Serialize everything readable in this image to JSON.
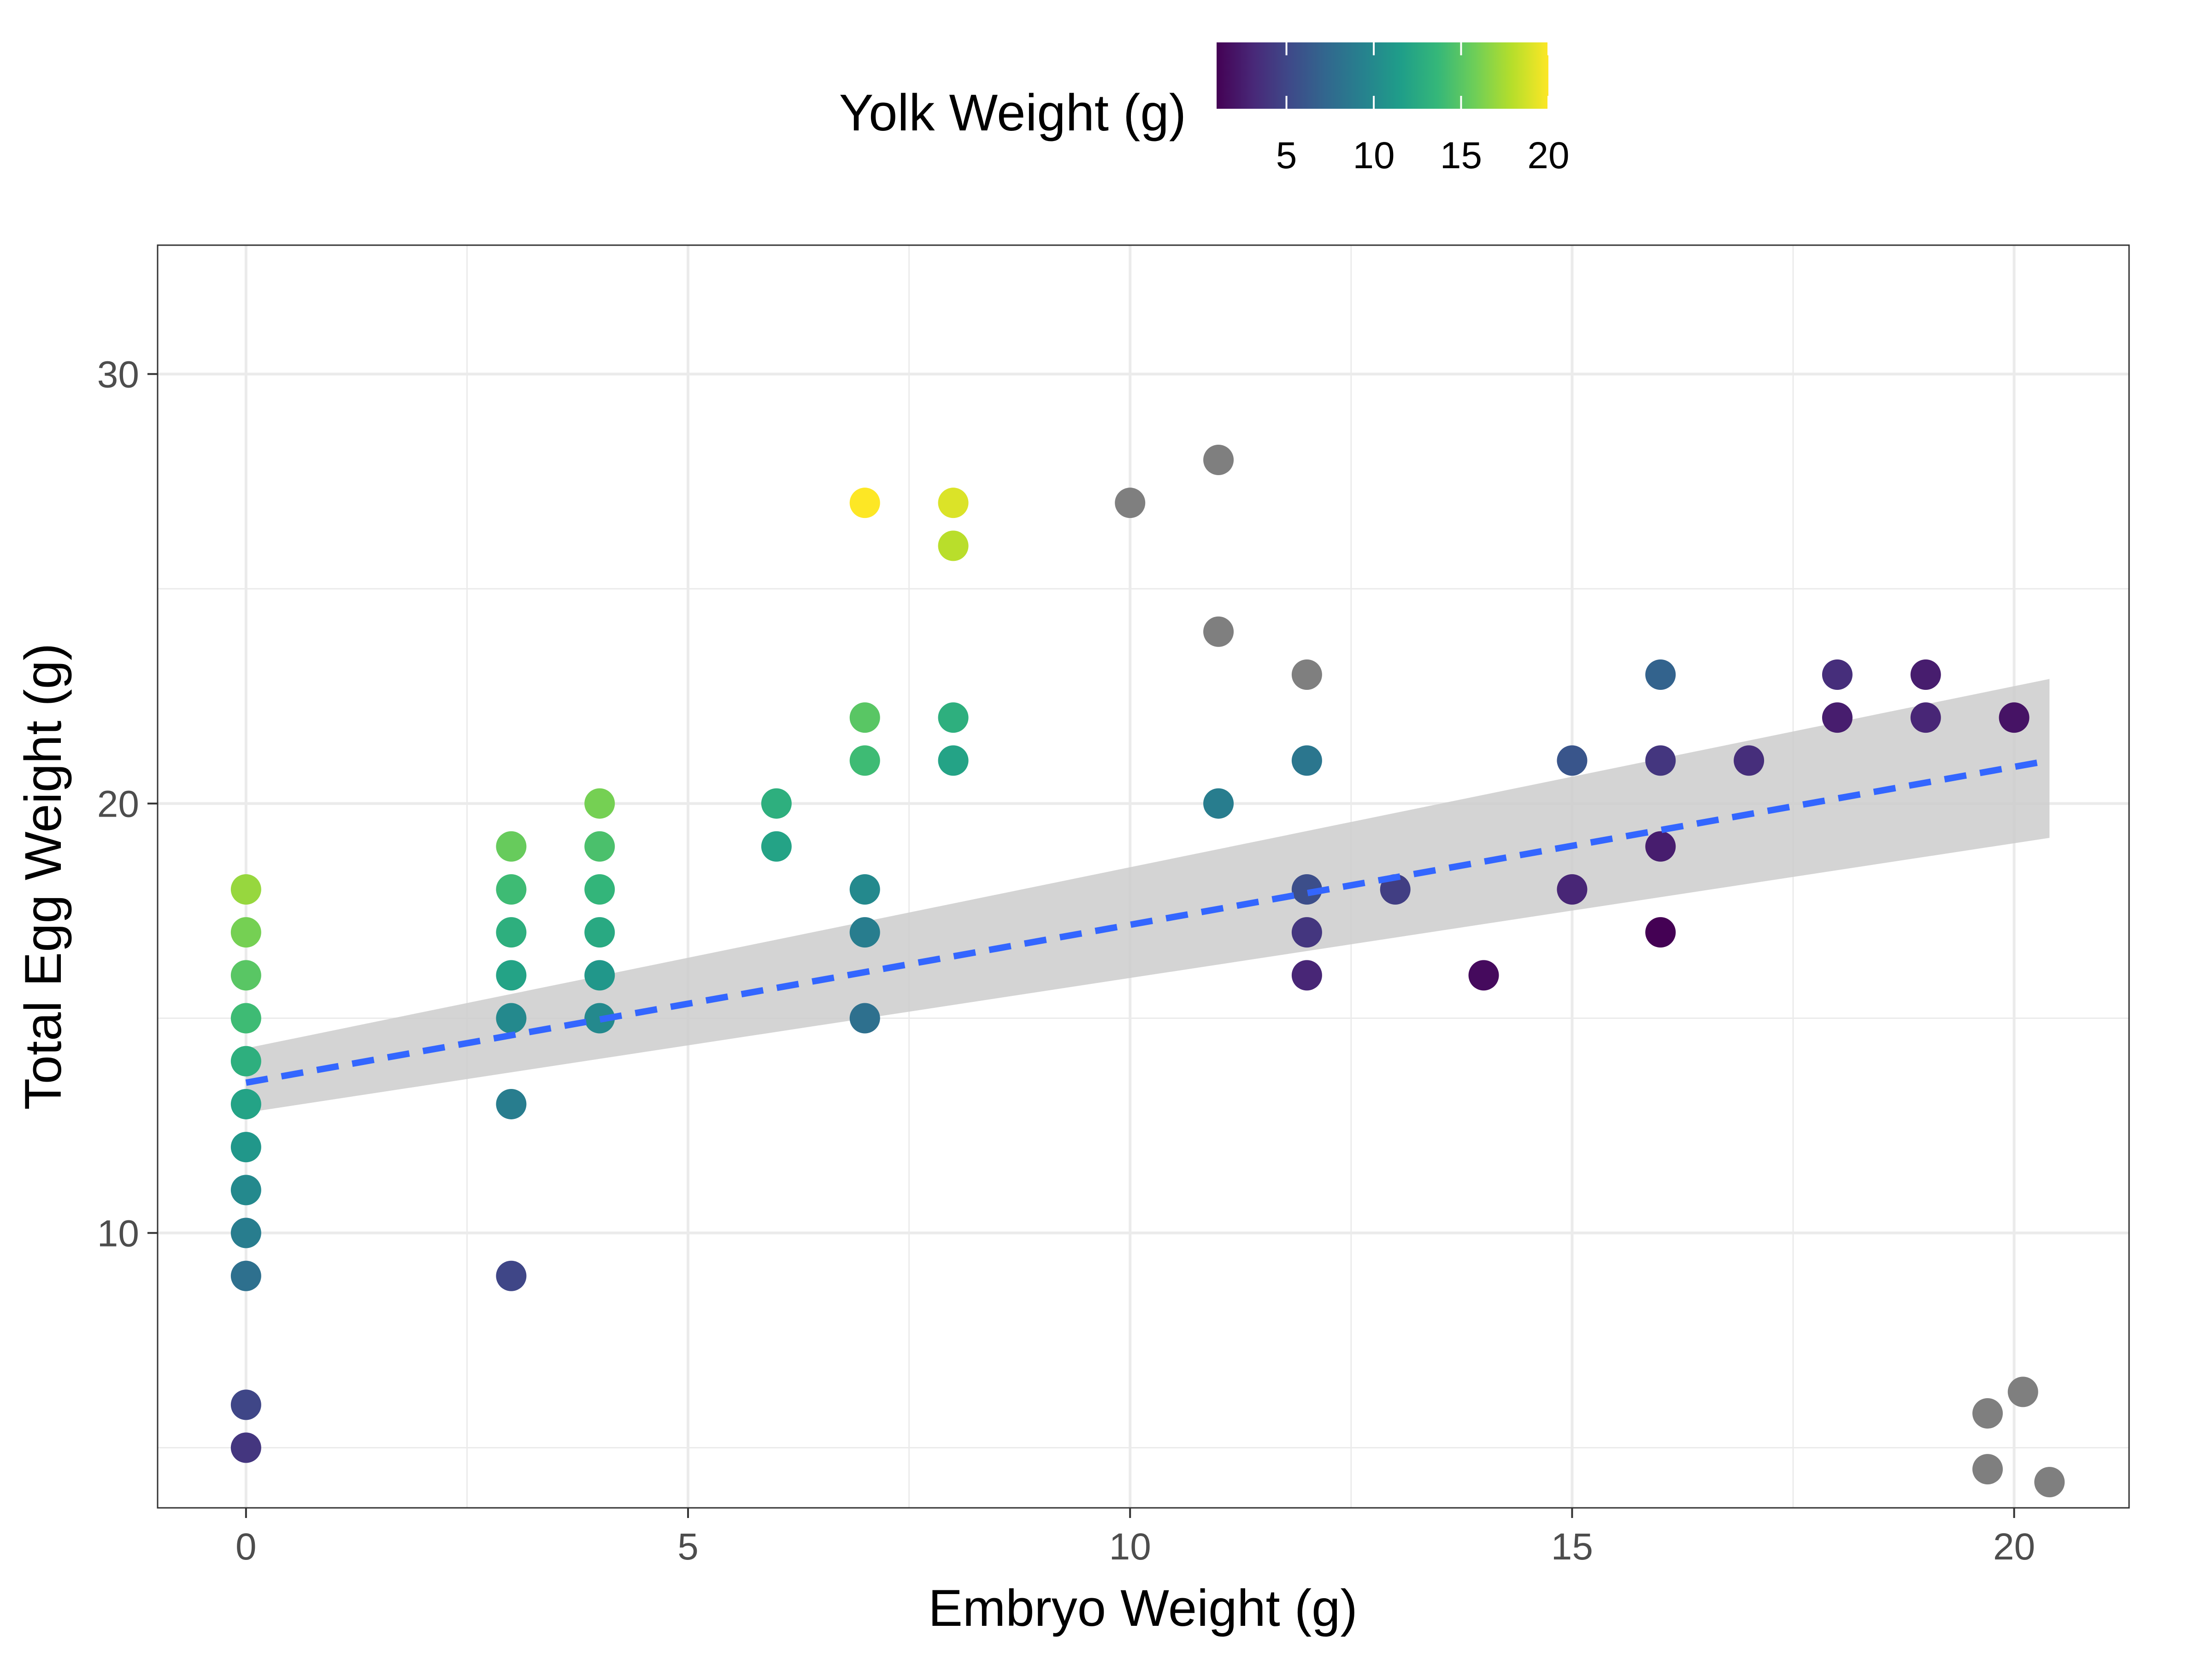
{
  "chart_data": {
    "type": "scatter",
    "xlabel": "Embryo Weight (g)",
    "ylabel": "Total Egg Weight (g)",
    "xlim": [
      -1,
      21.3
    ],
    "ylim": [
      3.6,
      33
    ],
    "x_ticks": [
      0,
      5,
      10,
      15,
      20
    ],
    "y_ticks": [
      10,
      20,
      30
    ],
    "x_minor_ticks": [
      2.5,
      7.5,
      12.5,
      17.5
    ],
    "y_minor_ticks": [
      5,
      15,
      25
    ],
    "grid": true,
    "legend": {
      "title": "Yolk Weight (g)",
      "position": "top",
      "type": "colorbar",
      "palette": "viridis",
      "range": [
        1,
        20
      ],
      "ticks": [
        5,
        10,
        15,
        20
      ],
      "na_color": "#7f7f7f"
    },
    "color_stops": [
      "#440154",
      "#482878",
      "#3e4a89",
      "#31688e",
      "#26828e",
      "#1f9e89",
      "#35b779",
      "#6ece58",
      "#b5de2b",
      "#fde725"
    ],
    "points": [
      {
        "x": 0,
        "y": 18,
        "yolk": 17
      },
      {
        "x": 0,
        "y": 17,
        "yolk": 16
      },
      {
        "x": 0,
        "y": 16,
        "yolk": 15
      },
      {
        "x": 0,
        "y": 15,
        "yolk": 14
      },
      {
        "x": 0,
        "y": 14,
        "yolk": 13
      },
      {
        "x": 0,
        "y": 13,
        "yolk": 12
      },
      {
        "x": 0,
        "y": 12,
        "yolk": 11
      },
      {
        "x": 0,
        "y": 11,
        "yolk": 10
      },
      {
        "x": 0,
        "y": 10,
        "yolk": 9
      },
      {
        "x": 0,
        "y": 9,
        "yolk": 8
      },
      {
        "x": 0,
        "y": 6,
        "yolk": 5
      },
      {
        "x": 0,
        "y": 5,
        "yolk": 4
      },
      {
        "x": 3,
        "y": 19,
        "yolk": 15.5
      },
      {
        "x": 3,
        "y": 18,
        "yolk": 14
      },
      {
        "x": 3,
        "y": 17,
        "yolk": 13
      },
      {
        "x": 3,
        "y": 16,
        "yolk": 12
      },
      {
        "x": 3,
        "y": 15,
        "yolk": 10
      },
      {
        "x": 3,
        "y": 13,
        "yolk": 9
      },
      {
        "x": 3,
        "y": 9,
        "yolk": 5
      },
      {
        "x": 4,
        "y": 20,
        "yolk": 16
      },
      {
        "x": 4,
        "y": 19,
        "yolk": 14.5
      },
      {
        "x": 4,
        "y": 18,
        "yolk": 13.5
      },
      {
        "x": 4,
        "y": 17,
        "yolk": 12.5
      },
      {
        "x": 4,
        "y": 16,
        "yolk": 11
      },
      {
        "x": 4,
        "y": 15,
        "yolk": 10
      },
      {
        "x": 6,
        "y": 20,
        "yolk": 13
      },
      {
        "x": 6,
        "y": 19,
        "yolk": 12
      },
      {
        "x": 7,
        "y": 27,
        "yolk": 20
      },
      {
        "x": 7,
        "y": 22,
        "yolk": 15
      },
      {
        "x": 7,
        "y": 21,
        "yolk": 14
      },
      {
        "x": 7,
        "y": 18,
        "yolk": 10
      },
      {
        "x": 7,
        "y": 17,
        "yolk": 9
      },
      {
        "x": 7,
        "y": 15,
        "yolk": 8
      },
      {
        "x": 8,
        "y": 27,
        "yolk": 19
      },
      {
        "x": 8,
        "y": 26,
        "yolk": 18
      },
      {
        "x": 8,
        "y": 22,
        "yolk": 13
      },
      {
        "x": 8,
        "y": 21,
        "yolk": 12
      },
      {
        "x": 10,
        "y": 27,
        "yolk": null
      },
      {
        "x": 11,
        "y": 28,
        "yolk": null
      },
      {
        "x": 11,
        "y": 24,
        "yolk": null
      },
      {
        "x": 11,
        "y": 20,
        "yolk": 9
      },
      {
        "x": 12,
        "y": 23,
        "yolk": null
      },
      {
        "x": 12,
        "y": 21,
        "yolk": 8.5
      },
      {
        "x": 12,
        "y": 18,
        "yolk": 5.5
      },
      {
        "x": 12,
        "y": 17,
        "yolk": 4
      },
      {
        "x": 12,
        "y": 16,
        "yolk": 3
      },
      {
        "x": 13,
        "y": 18,
        "yolk": 4.5
      },
      {
        "x": 14,
        "y": 16,
        "yolk": 1.5
      },
      {
        "x": 15,
        "y": 21,
        "yolk": 6
      },
      {
        "x": 15,
        "y": 18,
        "yolk": 3
      },
      {
        "x": 16,
        "y": 23,
        "yolk": 7
      },
      {
        "x": 16,
        "y": 21,
        "yolk": 4
      },
      {
        "x": 16,
        "y": 19,
        "yolk": 2.5
      },
      {
        "x": 16,
        "y": 17,
        "yolk": 1
      },
      {
        "x": 17,
        "y": 21,
        "yolk": 3.5
      },
      {
        "x": 18,
        "y": 23,
        "yolk": 3.5
      },
      {
        "x": 18,
        "y": 22,
        "yolk": 2.5
      },
      {
        "x": 19,
        "y": 23,
        "yolk": 2.5
      },
      {
        "x": 19,
        "y": 22,
        "yolk": 3
      },
      {
        "x": 20,
        "y": 22,
        "yolk": 2
      },
      {
        "x": 19.7,
        "y": 5.8,
        "yolk": null
      },
      {
        "x": 20.1,
        "y": 6.3,
        "yolk": null
      },
      {
        "x": 19.7,
        "y": 4.5,
        "yolk": null
      },
      {
        "x": 20.4,
        "y": 4.2,
        "yolk": null
      }
    ],
    "trend_line": {
      "method": "linear",
      "style": "dashed",
      "color": "#3366ff",
      "x_range": [
        0,
        20.4
      ],
      "y_start": 13.5,
      "y_end": 21,
      "ci_low_start": 12.8,
      "ci_high_start": 14.3,
      "ci_low_end": 19.2,
      "ci_high_end": 22.9,
      "ci_color": "#cccccc"
    }
  }
}
